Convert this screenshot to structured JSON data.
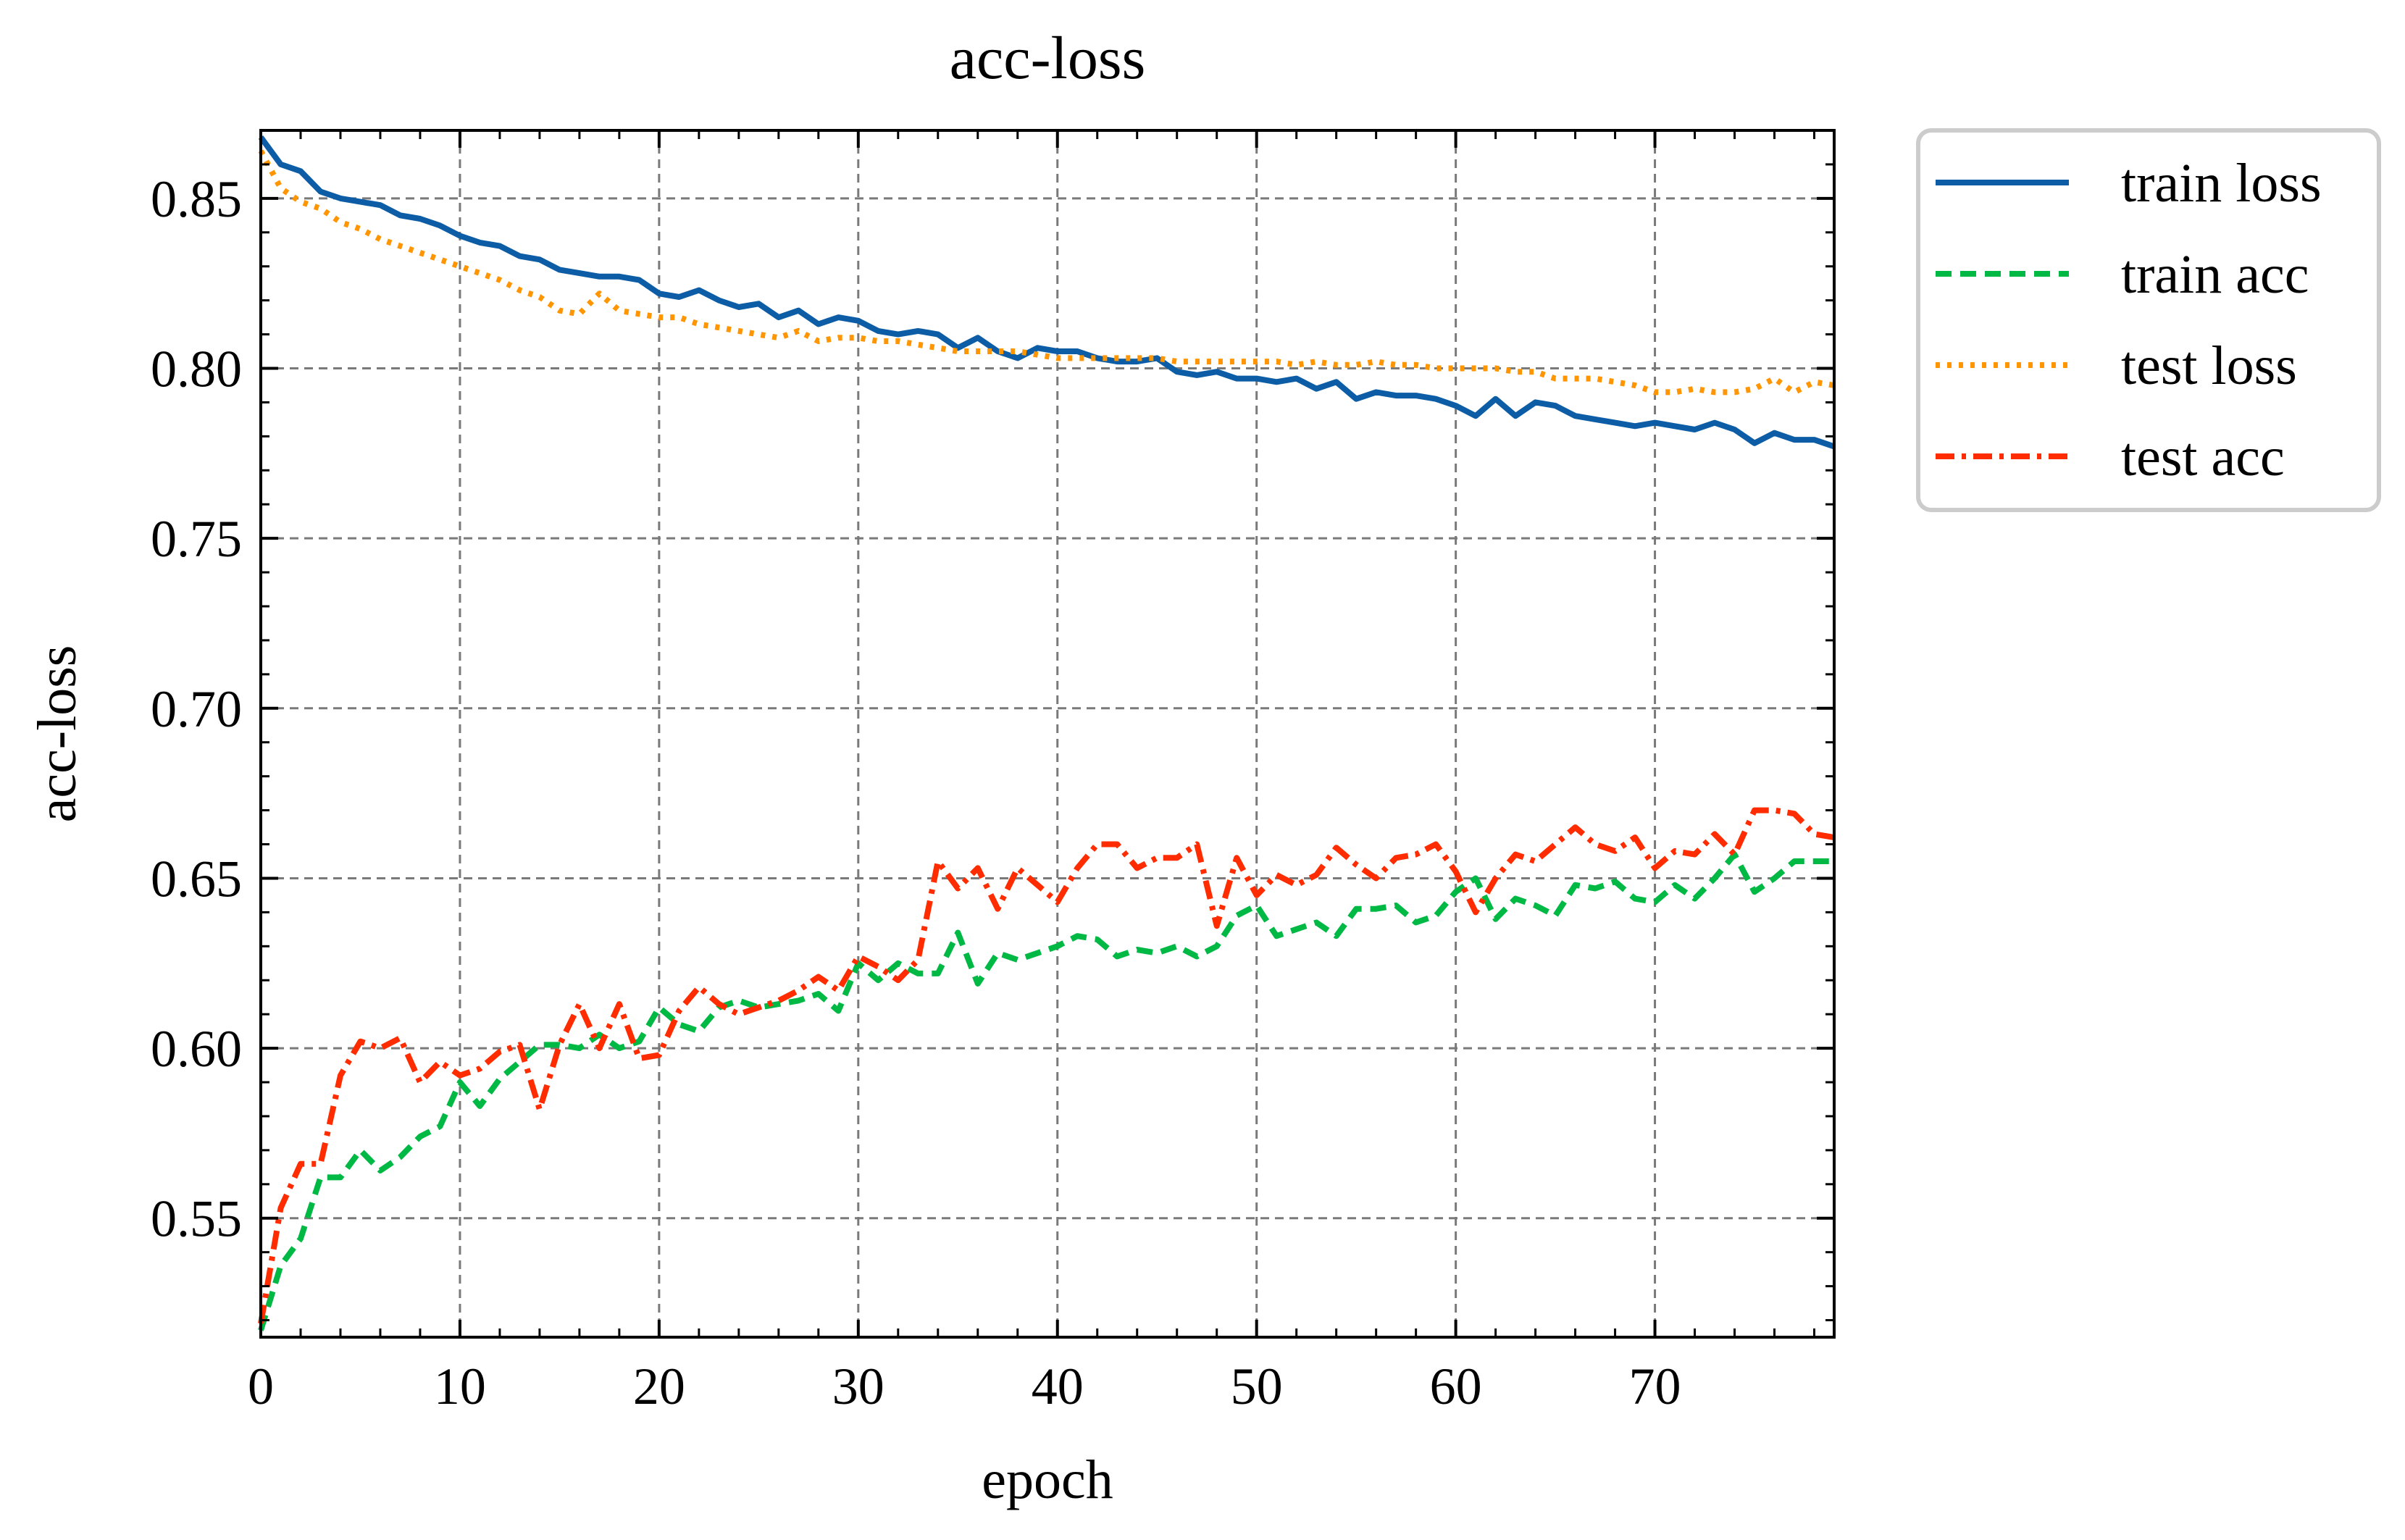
{
  "chart_data": {
    "type": "line",
    "title": "acc-loss",
    "xlabel": "epoch",
    "ylabel": "acc-loss",
    "xlim": [
      0,
      79
    ],
    "ylim": [
      0.515,
      0.87
    ],
    "xticks": [
      0,
      10,
      20,
      30,
      40,
      50,
      60,
      70
    ],
    "yticks": [
      0.55,
      0.6,
      0.65,
      0.7,
      0.75,
      0.8,
      0.85
    ],
    "xtick_labels": [
      "0",
      "10",
      "20",
      "30",
      "40",
      "50",
      "60",
      "70"
    ],
    "ytick_labels": [
      "0.55",
      "0.60",
      "0.65",
      "0.70",
      "0.75",
      "0.80",
      "0.85"
    ],
    "grid": true,
    "legend_position": "outside-top-right",
    "series": [
      {
        "name": "train loss",
        "color": "#0c5da5",
        "style": "solid",
        "x": [
          0,
          1,
          2,
          3,
          4,
          5,
          6,
          7,
          8,
          9,
          10,
          11,
          12,
          13,
          14,
          15,
          16,
          17,
          18,
          19,
          20,
          21,
          22,
          23,
          24,
          25,
          26,
          27,
          28,
          29,
          30,
          31,
          32,
          33,
          34,
          35,
          36,
          37,
          38,
          39,
          40,
          41,
          42,
          43,
          44,
          45,
          46,
          47,
          48,
          49,
          50,
          51,
          52,
          53,
          54,
          55,
          56,
          57,
          58,
          59,
          60,
          61,
          62,
          63,
          64,
          65,
          66,
          67,
          68,
          69,
          70,
          71,
          72,
          73,
          74,
          75,
          76,
          77,
          78,
          79
        ],
        "values": [
          0.868,
          0.86,
          0.858,
          0.852,
          0.85,
          0.849,
          0.848,
          0.845,
          0.844,
          0.842,
          0.839,
          0.837,
          0.836,
          0.833,
          0.832,
          0.829,
          0.828,
          0.827,
          0.827,
          0.826,
          0.822,
          0.821,
          0.823,
          0.82,
          0.818,
          0.819,
          0.815,
          0.817,
          0.813,
          0.815,
          0.814,
          0.811,
          0.81,
          0.811,
          0.81,
          0.806,
          0.809,
          0.805,
          0.803,
          0.806,
          0.805,
          0.805,
          0.803,
          0.802,
          0.802,
          0.803,
          0.799,
          0.798,
          0.799,
          0.797,
          0.797,
          0.796,
          0.797,
          0.794,
          0.796,
          0.791,
          0.793,
          0.792,
          0.792,
          0.791,
          0.789,
          0.786,
          0.791,
          0.786,
          0.79,
          0.789,
          0.786,
          0.785,
          0.784,
          0.783,
          0.784,
          0.783,
          0.782,
          0.784,
          0.782,
          0.778,
          0.781,
          0.779,
          0.779,
          0.777
        ]
      },
      {
        "name": "train acc",
        "color": "#00b945",
        "style": "dashed",
        "x": [
          0,
          1,
          2,
          3,
          4,
          5,
          6,
          7,
          8,
          9,
          10,
          11,
          12,
          13,
          14,
          15,
          16,
          17,
          18,
          19,
          20,
          21,
          22,
          23,
          24,
          25,
          26,
          27,
          28,
          29,
          30,
          31,
          32,
          33,
          34,
          35,
          36,
          37,
          38,
          39,
          40,
          41,
          42,
          43,
          44,
          45,
          46,
          47,
          48,
          49,
          50,
          51,
          52,
          53,
          54,
          55,
          56,
          57,
          58,
          59,
          60,
          61,
          62,
          63,
          64,
          65,
          66,
          67,
          68,
          69,
          70,
          71,
          72,
          73,
          74,
          75,
          76,
          77,
          78,
          79
        ],
        "values": [
          0.517,
          0.536,
          0.544,
          0.562,
          0.562,
          0.57,
          0.564,
          0.568,
          0.574,
          0.577,
          0.59,
          0.583,
          0.591,
          0.596,
          0.601,
          0.601,
          0.6,
          0.604,
          0.6,
          0.602,
          0.612,
          0.607,
          0.605,
          0.612,
          0.614,
          0.612,
          0.613,
          0.614,
          0.616,
          0.611,
          0.625,
          0.62,
          0.625,
          0.622,
          0.622,
          0.634,
          0.619,
          0.628,
          0.626,
          0.628,
          0.63,
          0.633,
          0.632,
          0.627,
          0.629,
          0.628,
          0.63,
          0.627,
          0.63,
          0.639,
          0.642,
          0.633,
          0.635,
          0.637,
          0.633,
          0.641,
          0.641,
          0.642,
          0.637,
          0.639,
          0.646,
          0.65,
          0.638,
          0.644,
          0.642,
          0.639,
          0.648,
          0.647,
          0.649,
          0.644,
          0.643,
          0.648,
          0.644,
          0.65,
          0.657,
          0.646,
          0.65,
          0.655,
          0.655,
          0.655
        ]
      },
      {
        "name": "test loss",
        "color": "#ff9500",
        "style": "dotted",
        "x": [
          0,
          1,
          2,
          3,
          4,
          5,
          6,
          7,
          8,
          9,
          10,
          11,
          12,
          13,
          14,
          15,
          16,
          17,
          18,
          19,
          20,
          21,
          22,
          23,
          24,
          25,
          26,
          27,
          28,
          29,
          30,
          31,
          32,
          33,
          34,
          35,
          36,
          37,
          38,
          39,
          40,
          41,
          42,
          43,
          44,
          45,
          46,
          47,
          48,
          49,
          50,
          51,
          52,
          53,
          54,
          55,
          56,
          57,
          58,
          59,
          60,
          61,
          62,
          63,
          64,
          65,
          66,
          67,
          68,
          69,
          70,
          71,
          72,
          73,
          74,
          75,
          76,
          77,
          78,
          79
        ],
        "values": [
          0.864,
          0.853,
          0.849,
          0.847,
          0.843,
          0.841,
          0.838,
          0.836,
          0.834,
          0.832,
          0.83,
          0.828,
          0.826,
          0.823,
          0.821,
          0.817,
          0.816,
          0.822,
          0.817,
          0.816,
          0.815,
          0.815,
          0.813,
          0.812,
          0.811,
          0.81,
          0.809,
          0.811,
          0.808,
          0.809,
          0.809,
          0.808,
          0.808,
          0.807,
          0.806,
          0.805,
          0.805,
          0.805,
          0.805,
          0.804,
          0.803,
          0.803,
          0.803,
          0.803,
          0.803,
          0.803,
          0.802,
          0.802,
          0.802,
          0.802,
          0.802,
          0.802,
          0.801,
          0.802,
          0.801,
          0.801,
          0.802,
          0.801,
          0.801,
          0.8,
          0.8,
          0.8,
          0.8,
          0.799,
          0.799,
          0.797,
          0.797,
          0.797,
          0.796,
          0.795,
          0.793,
          0.793,
          0.794,
          0.793,
          0.793,
          0.794,
          0.797,
          0.793,
          0.796,
          0.795
        ]
      },
      {
        "name": "test acc",
        "color": "#ff2c00",
        "style": "dashdot",
        "x": [
          0,
          1,
          2,
          3,
          4,
          5,
          6,
          7,
          8,
          9,
          10,
          11,
          12,
          13,
          14,
          15,
          16,
          17,
          18,
          19,
          20,
          21,
          22,
          23,
          24,
          25,
          26,
          27,
          28,
          29,
          30,
          31,
          32,
          33,
          34,
          35,
          36,
          37,
          38,
          39,
          40,
          41,
          42,
          43,
          44,
          45,
          46,
          47,
          48,
          49,
          50,
          51,
          52,
          53,
          54,
          55,
          56,
          57,
          58,
          59,
          60,
          61,
          62,
          63,
          64,
          65,
          66,
          67,
          68,
          69,
          70,
          71,
          72,
          73,
          74,
          75,
          76,
          77,
          78,
          79
        ],
        "values": [
          0.519,
          0.553,
          0.566,
          0.566,
          0.592,
          0.602,
          0.6,
          0.603,
          0.59,
          0.596,
          0.592,
          0.594,
          0.599,
          0.601,
          0.582,
          0.601,
          0.613,
          0.6,
          0.613,
          0.597,
          0.598,
          0.611,
          0.618,
          0.613,
          0.61,
          0.612,
          0.614,
          0.617,
          0.621,
          0.617,
          0.627,
          0.624,
          0.62,
          0.626,
          0.655,
          0.647,
          0.653,
          0.641,
          0.653,
          0.648,
          0.643,
          0.653,
          0.66,
          0.66,
          0.653,
          0.656,
          0.656,
          0.66,
          0.636,
          0.656,
          0.645,
          0.651,
          0.648,
          0.651,
          0.659,
          0.654,
          0.65,
          0.656,
          0.657,
          0.66,
          0.652,
          0.64,
          0.65,
          0.657,
          0.655,
          0.66,
          0.665,
          0.66,
          0.658,
          0.662,
          0.653,
          0.658,
          0.657,
          0.663,
          0.657,
          0.67,
          0.67,
          0.669,
          0.663,
          0.662
        ]
      }
    ]
  }
}
